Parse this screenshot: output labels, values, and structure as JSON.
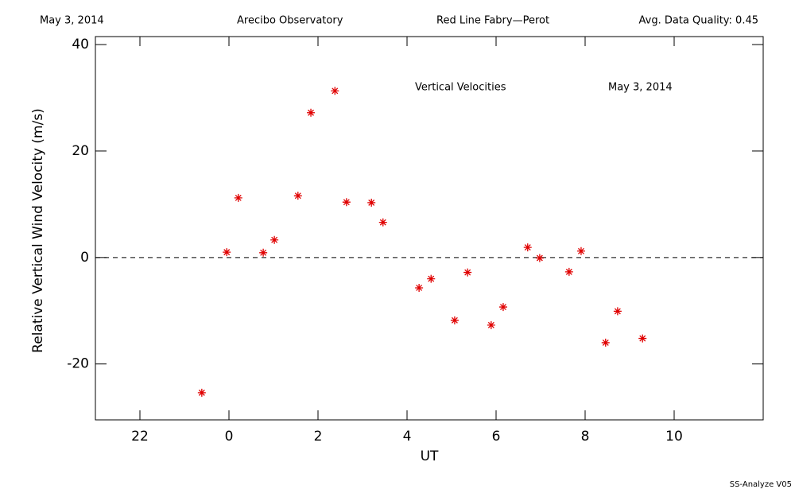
{
  "chart_data": {
    "type": "scatter",
    "header": [
      "May 3, 2014",
      "Arecibo Observatory",
      "Red Line Fabry—Perot",
      "Avg. Data Quality: 0.45"
    ],
    "annotations": [
      "Vertical Velocities",
      "May 3, 2014"
    ],
    "xlabel": "UT",
    "ylabel": "Relative Vertical Wind Velocity (m/s)",
    "footer": "SS-Analyze V05",
    "color": "#e00000",
    "zero_line": true,
    "x": [
      -0.61,
      -0.05,
      0.21,
      0.77,
      1.02,
      1.55,
      1.84,
      2.38,
      2.64,
      3.2,
      3.46,
      4.27,
      4.54,
      5.07,
      5.36,
      5.89,
      6.16,
      6.71,
      6.98,
      7.64,
      7.91,
      8.46,
      8.73,
      9.29
    ],
    "values": [
      -25.4,
      1.0,
      11.2,
      0.9,
      3.3,
      11.6,
      27.2,
      31.3,
      10.4,
      10.3,
      6.6,
      -5.7,
      -4.0,
      -11.8,
      -2.8,
      -12.7,
      -9.3,
      1.9,
      -0.1,
      -2.7,
      1.2,
      -16.0,
      -10.1,
      -15.2
    ],
    "xlim": [
      -3,
      12
    ],
    "xticks": [
      {
        "value": -2,
        "label": "22"
      },
      0,
      2,
      4,
      6,
      8,
      10
    ],
    "ylim": [
      -30.5,
      41.5
    ],
    "yticks": [
      -20,
      0,
      20,
      40
    ]
  }
}
